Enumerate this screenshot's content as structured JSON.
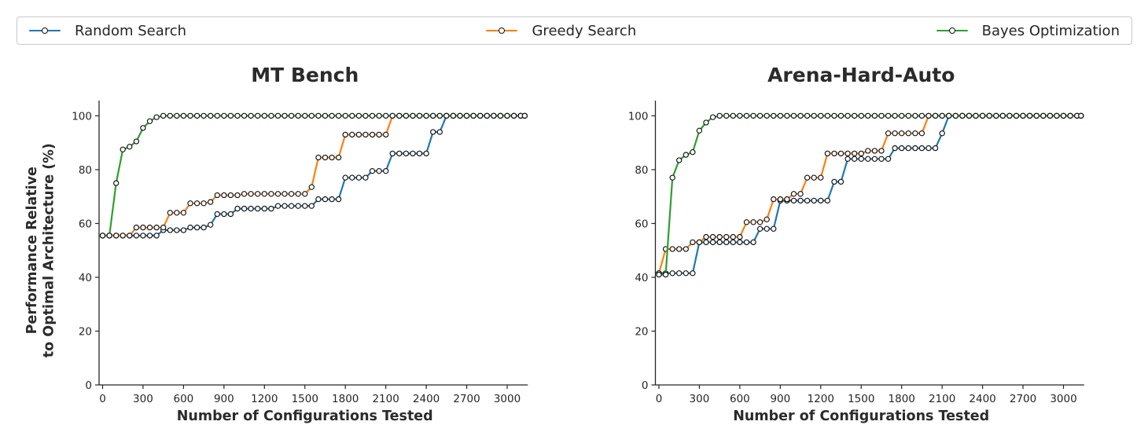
{
  "figure": {
    "background": "#ffffff",
    "text_color": "#262626",
    "spine_color": "#262626",
    "marker_face": "#ffffff",
    "marker_edge": "#111111"
  },
  "legend": {
    "items": [
      {
        "label": "Random Search",
        "color": "#1f77b4"
      },
      {
        "label": "Greedy Search",
        "color": "#ff7f0e"
      },
      {
        "label": "Bayes Optimization",
        "color": "#2ca02c"
      }
    ]
  },
  "chart_data": [
    {
      "type": "line",
      "title": "MT Bench",
      "xlabel": "Number of Configurations Tested",
      "ylabel_lines": [
        "Performance Relative",
        "to Optimal Architecture (%)"
      ],
      "xticks": [
        0,
        300,
        600,
        900,
        1200,
        1500,
        1800,
        2100,
        2400,
        2700,
        3000
      ],
      "yticks": [
        0,
        20,
        40,
        60,
        80,
        100
      ],
      "xlim": [
        0,
        3130
      ],
      "ylim": [
        0,
        105
      ],
      "grid": false,
      "legend_position": "top",
      "marker_interval": 50,
      "x_end": 3130,
      "series": [
        {
          "name": "Random Search",
          "color": "#1f77b4",
          "steps": [
            [
              0,
              55.5
            ],
            [
              450,
              57.5
            ],
            [
              650,
              58.5
            ],
            [
              800,
              59.5
            ],
            [
              850,
              63.5
            ],
            [
              1000,
              65.5
            ],
            [
              1300,
              66.5
            ],
            [
              1600,
              69
            ],
            [
              1800,
              77
            ],
            [
              2000,
              79.5
            ],
            [
              2150,
              86
            ],
            [
              2450,
              94
            ],
            [
              2550,
              100
            ],
            [
              3130,
              100
            ]
          ]
        },
        {
          "name": "Greedy Search",
          "color": "#ff7f0e",
          "steps": [
            [
              0,
              55.5
            ],
            [
              250,
              58.5
            ],
            [
              500,
              64
            ],
            [
              650,
              67.5
            ],
            [
              800,
              68
            ],
            [
              850,
              70.5
            ],
            [
              1050,
              71
            ],
            [
              1550,
              73.5
            ],
            [
              1600,
              84.5
            ],
            [
              1800,
              93
            ],
            [
              2150,
              100
            ],
            [
              3130,
              100
            ]
          ]
        },
        {
          "name": "Bayes Optimization",
          "color": "#2ca02c",
          "steps": [
            [
              0,
              55.5
            ],
            [
              100,
              75
            ],
            [
              150,
              87.5
            ],
            [
              200,
              88.5
            ],
            [
              250,
              90.5
            ],
            [
              300,
              95.5
            ],
            [
              350,
              98
            ],
            [
              400,
              99.5
            ],
            [
              450,
              100
            ],
            [
              3130,
              100
            ]
          ]
        }
      ]
    },
    {
      "type": "line",
      "title": "Arena-Hard-Auto",
      "xlabel": "Number of Configurations Tested",
      "ylabel_lines": [],
      "xticks": [
        0,
        300,
        600,
        900,
        1200,
        1500,
        1800,
        2100,
        2400,
        2700,
        3000
      ],
      "yticks": [
        0,
        20,
        40,
        60,
        80,
        100
      ],
      "xlim": [
        0,
        3130
      ],
      "ylim": [
        0,
        105
      ],
      "grid": false,
      "legend_position": "top",
      "marker_interval": 50,
      "x_end": 3130,
      "series": [
        {
          "name": "Random Search",
          "color": "#1f77b4",
          "steps": [
            [
              0,
              41.5
            ],
            [
              300,
              53
            ],
            [
              750,
              58
            ],
            [
              900,
              68.5
            ],
            [
              1300,
              75.5
            ],
            [
              1400,
              84
            ],
            [
              1750,
              88
            ],
            [
              2100,
              93.5
            ],
            [
              2150,
              100
            ],
            [
              3130,
              100
            ]
          ]
        },
        {
          "name": "Greedy Search",
          "color": "#ff7f0e",
          "steps": [
            [
              0,
              41.5
            ],
            [
              50,
              50.5
            ],
            [
              250,
              53
            ],
            [
              350,
              55
            ],
            [
              650,
              60.5
            ],
            [
              800,
              61.5
            ],
            [
              850,
              69
            ],
            [
              1000,
              71
            ],
            [
              1100,
              77
            ],
            [
              1250,
              86
            ],
            [
              1550,
              87
            ],
            [
              1700,
              93.5
            ],
            [
              2000,
              100
            ],
            [
              3130,
              100
            ]
          ]
        },
        {
          "name": "Bayes Optimization",
          "color": "#2ca02c",
          "steps": [
            [
              0,
              41
            ],
            [
              100,
              77
            ],
            [
              150,
              83.5
            ],
            [
              200,
              85.5
            ],
            [
              250,
              86.5
            ],
            [
              300,
              94.5
            ],
            [
              350,
              97.5
            ],
            [
              400,
              99.5
            ],
            [
              450,
              100
            ],
            [
              3130,
              100
            ]
          ]
        }
      ]
    }
  ]
}
